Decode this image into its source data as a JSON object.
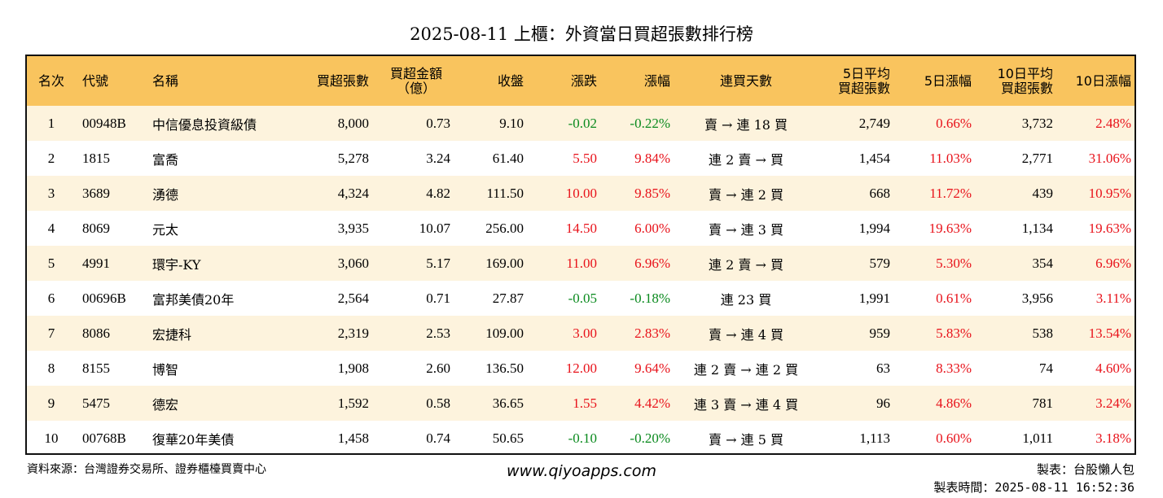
{
  "title": "2025-08-11 上櫃：外資當日買超張數排行榜",
  "headers": [
    "名次",
    "代號",
    "名稱",
    "買超張數",
    "買超金額\n（億）",
    "收盤",
    "漲跌",
    "漲幅",
    "連買天數",
    "5日平均\n買超張數",
    "5日漲幅",
    "10日平均\n買超張數",
    "10日漲幅"
  ],
  "colors": {
    "header_bg": "#f9c45e",
    "odd_row_bg": "#fdf3dd",
    "up": "#e8121a",
    "down": "#0a8a1e"
  },
  "rows": [
    {
      "rank": "1",
      "code": "00948B",
      "name": "中信優息投資級債",
      "net_buy": "8,000",
      "amount": "0.73",
      "close": "9.10",
      "change": "-0.02",
      "pct": "-0.22%",
      "streak": "賣 → 連 18 買",
      "avg5": "2,749",
      "pct5": "0.66%",
      "avg10": "3,732",
      "pct10": "2.48%",
      "dir": "down"
    },
    {
      "rank": "2",
      "code": "1815",
      "name": "富喬",
      "net_buy": "5,278",
      "amount": "3.24",
      "close": "61.40",
      "change": "5.50",
      "pct": "9.84%",
      "streak": "連 2 賣 → 買",
      "avg5": "1,454",
      "pct5": "11.03%",
      "avg10": "2,771",
      "pct10": "31.06%",
      "dir": "up"
    },
    {
      "rank": "3",
      "code": "3689",
      "name": "湧德",
      "net_buy": "4,324",
      "amount": "4.82",
      "close": "111.50",
      "change": "10.00",
      "pct": "9.85%",
      "streak": "賣 → 連 2 買",
      "avg5": "668",
      "pct5": "11.72%",
      "avg10": "439",
      "pct10": "10.95%",
      "dir": "up"
    },
    {
      "rank": "4",
      "code": "8069",
      "name": "元太",
      "net_buy": "3,935",
      "amount": "10.07",
      "close": "256.00",
      "change": "14.50",
      "pct": "6.00%",
      "streak": "賣 → 連 3 買",
      "avg5": "1,994",
      "pct5": "19.63%",
      "avg10": "1,134",
      "pct10": "19.63%",
      "dir": "up"
    },
    {
      "rank": "5",
      "code": "4991",
      "name": "環宇-KY",
      "net_buy": "3,060",
      "amount": "5.17",
      "close": "169.00",
      "change": "11.00",
      "pct": "6.96%",
      "streak": "連 2 賣 → 買",
      "avg5": "579",
      "pct5": "5.30%",
      "avg10": "354",
      "pct10": "6.96%",
      "dir": "up"
    },
    {
      "rank": "6",
      "code": "00696B",
      "name": "富邦美債20年",
      "net_buy": "2,564",
      "amount": "0.71",
      "close": "27.87",
      "change": "-0.05",
      "pct": "-0.18%",
      "streak": "連 23 買",
      "avg5": "1,991",
      "pct5": "0.61%",
      "avg10": "3,956",
      "pct10": "3.11%",
      "dir": "down"
    },
    {
      "rank": "7",
      "code": "8086",
      "name": "宏捷科",
      "net_buy": "2,319",
      "amount": "2.53",
      "close": "109.00",
      "change": "3.00",
      "pct": "2.83%",
      "streak": "賣 → 連 4 買",
      "avg5": "959",
      "pct5": "5.83%",
      "avg10": "538",
      "pct10": "13.54%",
      "dir": "up"
    },
    {
      "rank": "8",
      "code": "8155",
      "name": "博智",
      "net_buy": "1,908",
      "amount": "2.60",
      "close": "136.50",
      "change": "12.00",
      "pct": "9.64%",
      "streak": "連 2 賣 → 連 2 買",
      "avg5": "63",
      "pct5": "8.33%",
      "avg10": "74",
      "pct10": "4.60%",
      "dir": "up"
    },
    {
      "rank": "9",
      "code": "5475",
      "name": "德宏",
      "net_buy": "1,592",
      "amount": "0.58",
      "close": "36.65",
      "change": "1.55",
      "pct": "4.42%",
      "streak": "連 3 賣 → 連 4 買",
      "avg5": "96",
      "pct5": "4.86%",
      "avg10": "781",
      "pct10": "3.24%",
      "dir": "up"
    },
    {
      "rank": "10",
      "code": "00768B",
      "name": "復華20年美債",
      "net_buy": "1,458",
      "amount": "0.74",
      "close": "50.65",
      "change": "-0.10",
      "pct": "-0.20%",
      "streak": "賣 → 連 5 買",
      "avg5": "1,113",
      "pct5": "0.60%",
      "avg10": "1,011",
      "pct10": "3.18%",
      "dir": "down"
    }
  ],
  "footer": {
    "source": "資料來源：台灣證券交易所、證券櫃檯買賣中心",
    "website": "www.qiyoapps.com",
    "author": "製表：台股懶人包",
    "timestamp": "製表時間：2025-08-11 16:52:36"
  }
}
